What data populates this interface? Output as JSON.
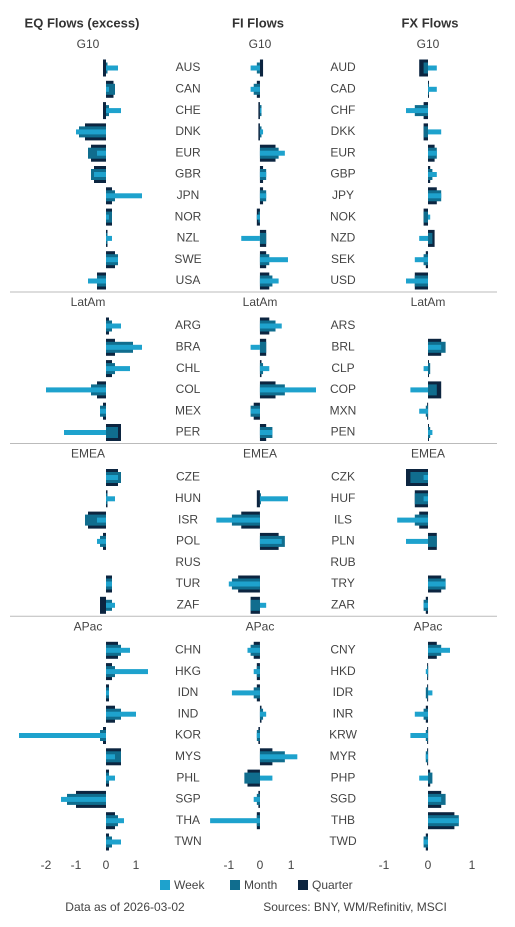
{
  "legend": [
    {
      "name": "Week",
      "color": "#1ea2cd"
    },
    {
      "name": "Month",
      "color": "#106d8e"
    },
    {
      "name": "Quarter",
      "color": "#0c2540"
    }
  ],
  "chart_data": [
    {
      "type": "bar",
      "orientation": "horizontal",
      "title": "EQ Flows (excess)",
      "xlim": [
        -3,
        1.6
      ],
      "xticks": [
        -2,
        -1,
        0,
        1
      ],
      "groups": [
        {
          "name": "G10",
          "categories": [
            "AUS",
            "CAN",
            "CHE",
            "DNK",
            "EUR",
            "GBR",
            "JPN",
            "NOR",
            "NZL",
            "SWE",
            "USA"
          ],
          "series": [
            {
              "values": [
                0.4,
                0.1,
                0.5,
                -1.0,
                -0.3,
                -0.4,
                1.2,
                0.1,
                0.2,
                0.4,
                -0.6
              ]
            },
            {
              "values": [
                0.05,
                0.3,
                0.1,
                -0.9,
                -0.6,
                -0.5,
                0.3,
                0.2,
                0.05,
                0.4,
                -0.3
              ]
            },
            {
              "values": [
                -0.1,
                0.25,
                -0.1,
                -0.7,
                -0.5,
                -0.4,
                0.2,
                0.2,
                0.05,
                0.3,
                -0.3
              ]
            }
          ]
        },
        {
          "name": "LatAm",
          "categories": [
            "ARG",
            "BRA",
            "CHL",
            "COL",
            "MEX",
            "PER"
          ],
          "series": [
            {
              "values": [
                0.5,
                1.2,
                0.8,
                -2.0,
                -0.2,
                -1.4
              ]
            },
            {
              "values": [
                0.2,
                0.9,
                0.3,
                -0.5,
                -0.2,
                0.4
              ]
            },
            {
              "values": [
                0.1,
                0.3,
                0.2,
                -0.3,
                -0.1,
                0.5
              ]
            }
          ]
        },
        {
          "name": "EMEA",
          "categories": [
            "CZE",
            "HUN",
            "ISR",
            "POL",
            "RUS",
            "TUR",
            "ZAF"
          ],
          "series": [
            {
              "values": [
                0.4,
                0.3,
                -0.3,
                -0.3,
                null,
                0.2,
                0.3
              ]
            },
            {
              "values": [
                0.5,
                0.05,
                -0.7,
                -0.2,
                null,
                0.2,
                0.2
              ]
            },
            {
              "values": [
                0.4,
                0.05,
                -0.6,
                -0.1,
                null,
                0.2,
                -0.2
              ]
            }
          ]
        },
        {
          "name": "APac",
          "categories": [
            "CHN",
            "HKG",
            "IDN",
            "IND",
            "KOR",
            "MYS",
            "PHL",
            "SGP",
            "THA",
            "TWN"
          ],
          "series": [
            {
              "values": [
                0.8,
                1.4,
                0.1,
                1.0,
                -2.9,
                0.3,
                0.3,
                -1.5,
                0.6,
                0.5
              ]
            },
            {
              "values": [
                0.5,
                0.3,
                0.1,
                0.5,
                -0.2,
                0.5,
                0.1,
                -1.3,
                0.4,
                0.2
              ]
            },
            {
              "values": [
                0.4,
                0.2,
                0.1,
                0.3,
                -0.1,
                0.5,
                0.1,
                -1.0,
                0.3,
                0.1
              ]
            }
          ]
        }
      ]
    },
    {
      "type": "bar",
      "orientation": "horizontal",
      "title": "FI Flows",
      "xlim": [
        -1.7,
        1.8
      ],
      "xticks": [
        -1,
        0,
        1
      ],
      "groups": [
        {
          "name": "G10",
          "series": [
            {
              "values": [
                -0.3,
                -0.3,
                0.05,
                0.1,
                0.8,
                0.2,
                0.2,
                -0.1,
                -0.6,
                0.9,
                0.6
              ]
            },
            {
              "values": [
                -0.1,
                -0.2,
                0.05,
                0.05,
                0.6,
                0.2,
                0.2,
                -0.05,
                0.2,
                0.3,
                0.4
              ]
            },
            {
              "values": [
                0.1,
                -0.1,
                -0.05,
                -0.05,
                0.5,
                0.1,
                0.1,
                -0.1,
                0.2,
                0.2,
                0.3
              ]
            }
          ]
        },
        {
          "name": "LatAm",
          "series": [
            {
              "values": [
                0.7,
                -0.3,
                0.3,
                1.8,
                -0.3,
                0.4
              ]
            },
            {
              "values": [
                0.5,
                0.2,
                0.1,
                0.8,
                -0.3,
                0.4
              ]
            },
            {
              "values": [
                0.3,
                0.2,
                0.05,
                0.5,
                -0.2,
                0.2
              ]
            }
          ]
        },
        {
          "name": "EMEA",
          "series": [
            {
              "values": [
                null,
                0.9,
                -1.4,
                0.7,
                null,
                -1.0,
                0.2
              ]
            },
            {
              "values": [
                null,
                0.0,
                -0.9,
                0.8,
                null,
                -0.9,
                -0.3
              ]
            },
            {
              "values": [
                null,
                -0.1,
                -0.6,
                0.6,
                null,
                -0.7,
                -0.3
              ]
            }
          ]
        },
        {
          "name": "APac",
          "series": [
            {
              "values": [
                -0.4,
                -0.2,
                -0.9,
                0.2,
                -0.1,
                1.2,
                0.4,
                -0.2,
                -1.6,
                null
              ]
            },
            {
              "values": [
                -0.3,
                -0.1,
                -0.2,
                0.1,
                -0.1,
                0.8,
                -0.5,
                -0.1,
                -0.1,
                null
              ]
            },
            {
              "values": [
                -0.2,
                -0.1,
                -0.1,
                0.05,
                -0.05,
                0.4,
                -0.4,
                -0.05,
                -0.1,
                null
              ]
            }
          ]
        }
      ]
    },
    {
      "type": "bar",
      "orientation": "horizontal",
      "title": "FX Flows",
      "xlim": [
        -1.5,
        1.5
      ],
      "xticks": [
        -1,
        0,
        1
      ],
      "groups": [
        {
          "name": "G10",
          "categories": [
            "AUD",
            "CAD",
            "CHF",
            "DKK",
            "EUR",
            "GBP",
            "JPY",
            "NOK",
            "NZD",
            "SEK",
            "USD"
          ],
          "series": [
            {
              "values": [
                0.2,
                0.2,
                -0.5,
                0.3,
                0.2,
                0.2,
                0.3,
                0.05,
                -0.2,
                -0.3,
                -0.5
              ]
            },
            {
              "values": [
                -0.1,
                0.02,
                -0.3,
                -0.1,
                0.2,
                0.1,
                0.3,
                -0.1,
                0.1,
                -0.1,
                -0.3
              ]
            },
            {
              "values": [
                -0.2,
                0.01,
                -0.1,
                -0.1,
                0.15,
                0.05,
                0.2,
                -0.1,
                0.15,
                -0.05,
                -0.3
              ]
            }
          ]
        },
        {
          "name": "LatAm",
          "categories": [
            "ARS",
            "BRL",
            "CLP",
            "COP",
            "MXN",
            "PEN"
          ],
          "series": [
            {
              "values": [
                null,
                0.3,
                -0.1,
                -0.4,
                -0.2,
                0.1
              ]
            },
            {
              "values": [
                null,
                0.4,
                0.05,
                0.2,
                -0.05,
                0.05
              ]
            },
            {
              "values": [
                null,
                0.3,
                0.02,
                0.3,
                -0.02,
                0.02
              ]
            }
          ]
        },
        {
          "name": "EMEA",
          "categories": [
            "CZK",
            "HUF",
            "ILS",
            "PLN",
            "RUB",
            "TRY",
            "ZAR"
          ],
          "series": [
            {
              "values": [
                -0.1,
                -0.1,
                -0.7,
                -0.5,
                null,
                0.4,
                -0.1
              ]
            },
            {
              "values": [
                -0.4,
                -0.3,
                -0.3,
                0.2,
                null,
                0.4,
                -0.1
              ]
            },
            {
              "values": [
                -0.5,
                -0.3,
                -0.2,
                0.2,
                null,
                0.3,
                -0.05
              ]
            }
          ]
        },
        {
          "name": "APac",
          "categories": [
            "CNY",
            "HKD",
            "IDR",
            "INR",
            "KRW",
            "MYR",
            "PHP",
            "SGD",
            "THB",
            "TWD"
          ],
          "series": [
            {
              "values": [
                0.5,
                -0.05,
                0.1,
                -0.3,
                -0.4,
                -0.05,
                -0.2,
                0.3,
                0.7,
                -0.1
              ]
            },
            {
              "values": [
                0.3,
                -0.02,
                -0.05,
                -0.1,
                -0.05,
                -0.05,
                0.1,
                0.4,
                0.7,
                -0.1
              ]
            },
            {
              "values": [
                0.2,
                -0.02,
                -0.02,
                -0.05,
                -0.02,
                -0.02,
                0.05,
                0.3,
                0.6,
                -0.05
              ]
            }
          ]
        }
      ]
    }
  ],
  "footer": {
    "date": "Data as of 2026-03-02",
    "sources": "Sources:  BNY, WM/Refinitiv, MSCI"
  }
}
